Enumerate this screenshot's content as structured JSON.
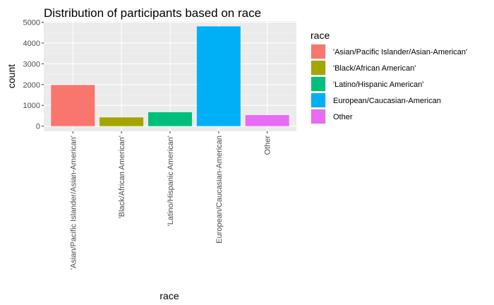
{
  "chart_data": {
    "type": "bar",
    "title": "Distribution of participants based on race",
    "xlabel": "race",
    "ylabel": "count",
    "categories": [
      "'Asian/Pacific Islander/Asian-American'",
      "'Black/African American'",
      "'Latino/Hispanic American'",
      "European/Caucasian-American",
      "Other"
    ],
    "values": [
      1980,
      420,
      670,
      4800,
      530
    ],
    "colors": [
      "#F8766D",
      "#A3A500",
      "#00BF7D",
      "#00B0F6",
      "#E76BF3"
    ],
    "ylim": [
      -250,
      5050
    ],
    "yticks": [
      0,
      1000,
      2000,
      3000,
      4000,
      5000
    ],
    "ytick_labels": [
      "0",
      "1000",
      "2000",
      "3000",
      "4000",
      "5000"
    ],
    "grid": true,
    "legend": {
      "title": "race",
      "placement": "right",
      "entries": [
        "'Asian/Pacific Islander/Asian-American'",
        "'Black/African American'",
        "'Latino/Hispanic American'",
        "European/Caucasian-American",
        "Other"
      ]
    },
    "panel_background": "#EBEBEB",
    "grid_color": "#FFFFFF"
  }
}
